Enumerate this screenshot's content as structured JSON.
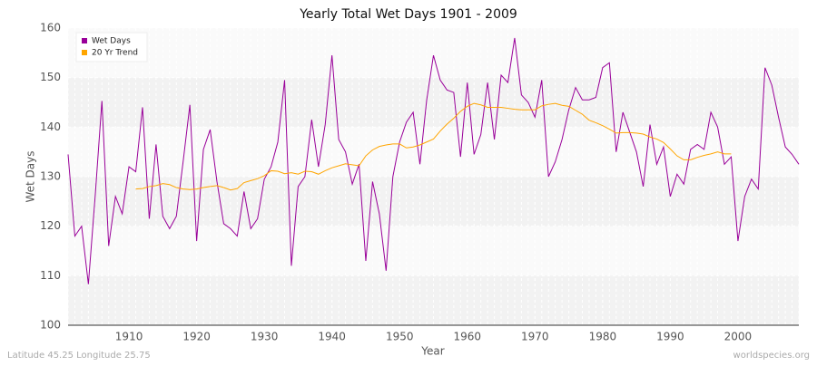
{
  "chart_data": {
    "type": "line",
    "title": "Yearly Total Wet Days 1901 - 2009",
    "xlabel": "Year",
    "ylabel": "Wet Days",
    "footer_left": "Latitude 45.25 Longitude 25.75",
    "footer_right": "worldspecies.org",
    "x": [
      1901,
      1902,
      1903,
      1904,
      1905,
      1906,
      1907,
      1908,
      1909,
      1910,
      1911,
      1912,
      1913,
      1914,
      1915,
      1916,
      1917,
      1918,
      1919,
      1920,
      1921,
      1922,
      1923,
      1924,
      1925,
      1926,
      1927,
      1928,
      1929,
      1930,
      1931,
      1932,
      1933,
      1934,
      1935,
      1936,
      1937,
      1938,
      1939,
      1940,
      1941,
      1942,
      1943,
      1944,
      1945,
      1946,
      1947,
      1948,
      1949,
      1950,
      1951,
      1952,
      1953,
      1954,
      1955,
      1956,
      1957,
      1958,
      1959,
      1960,
      1961,
      1962,
      1963,
      1964,
      1965,
      1966,
      1967,
      1968,
      1969,
      1970,
      1971,
      1972,
      1973,
      1974,
      1975,
      1976,
      1977,
      1978,
      1979,
      1980,
      1981,
      1982,
      1983,
      1984,
      1985,
      1986,
      1987,
      1988,
      1989,
      1990,
      1991,
      1992,
      1993,
      1994,
      1995,
      1996,
      1997,
      1998,
      1999,
      2000,
      2001,
      2002,
      2003,
      2004,
      2005,
      2006,
      2007,
      2008,
      2009
    ],
    "series": [
      {
        "name": "Wet Days",
        "color": "#990099",
        "values": [
          134.5,
          118,
          120,
          108.3,
          126,
          145.3,
          116,
          126,
          122.5,
          132,
          131,
          144,
          121.5,
          136.5,
          122,
          119.5,
          122,
          133,
          144.5,
          117,
          135.5,
          139.5,
          129,
          120.5,
          119.5,
          118,
          127,
          119.5,
          121.5,
          129.5,
          132,
          137,
          149.5,
          112,
          128,
          130,
          141.5,
          132,
          140.5,
          154.5,
          137.5,
          135,
          128.5,
          132.5,
          113,
          129,
          122.5,
          111,
          130,
          137,
          141,
          143,
          132.5,
          145.5,
          154.5,
          149.5,
          147.5,
          147,
          134,
          149,
          134.5,
          138.5,
          149,
          137.5,
          150.5,
          149,
          158,
          146.5,
          145,
          142,
          149.5,
          130,
          133,
          137.5,
          143.5,
          148,
          145.5,
          145.5,
          146,
          152,
          153,
          135,
          143,
          139,
          135,
          128,
          140.5,
          132.5,
          136,
          126,
          130.5,
          128.5,
          135.5,
          136.5,
          135.5,
          143,
          140,
          132.5,
          134,
          117,
          126,
          129.5,
          127.5,
          152,
          148.5,
          142,
          136,
          134.5,
          132.5
        ]
      },
      {
        "name": "20 Yr Trend",
        "color": "#ffa500",
        "values": [
          null,
          null,
          null,
          null,
          null,
          null,
          null,
          null,
          null,
          null,
          127.5,
          127.6,
          128,
          128.2,
          128.6,
          128.4,
          127.8,
          127.5,
          127.4,
          127.5,
          127.8,
          128,
          128.2,
          127.8,
          127.3,
          127.6,
          128.8,
          129.2,
          129.6,
          130.2,
          131.2,
          131.1,
          130.6,
          130.8,
          130.5,
          131.1,
          131,
          130.5,
          131.2,
          131.8,
          132.2,
          132.6,
          132.4,
          132.2,
          134.2,
          135.4,
          136.1,
          136.4,
          136.6,
          136.6,
          135.8,
          136,
          136.4,
          137,
          137.6,
          139.2,
          140.6,
          141.8,
          143.2,
          144.2,
          144.8,
          144.5,
          144,
          144,
          144,
          143.8,
          143.6,
          143.5,
          143.5,
          143.5,
          144.3,
          144.6,
          144.8,
          144.4,
          144.2,
          143.4,
          142.6,
          141.4,
          140.9,
          140.3,
          139.6,
          138.8,
          138.9,
          138.9,
          138.8,
          138.6,
          138,
          137.6,
          136.9,
          135.6,
          134.2,
          133.4,
          133.4,
          133.9,
          134.3,
          134.6,
          135,
          134.6,
          134.6,
          null,
          null,
          null,
          null,
          null,
          null,
          null,
          null,
          null,
          null
        ]
      }
    ],
    "xlim": [
      1901,
      2009
    ],
    "xticks": [
      1910,
      1920,
      1930,
      1940,
      1950,
      1960,
      1970,
      1980,
      1990,
      2000
    ],
    "ylim": [
      100,
      160
    ],
    "yticks": [
      100,
      110,
      120,
      130,
      140,
      150,
      160
    ],
    "grid": true,
    "legend": "top-left"
  }
}
